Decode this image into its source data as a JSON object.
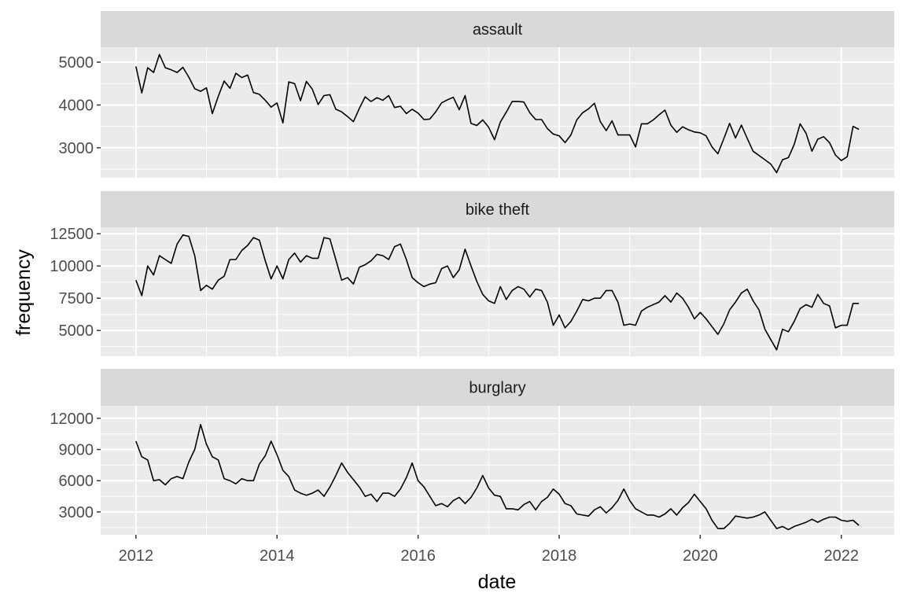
{
  "chart_data": {
    "type": "line",
    "xlabel": "date",
    "ylabel": "frequency",
    "xlim": [
      2011.5,
      2022.75
    ],
    "x_ticks": [
      2012,
      2014,
      2016,
      2018,
      2020,
      2022
    ],
    "x_tick_labels": [
      "2012",
      "2014",
      "2016",
      "2018",
      "2020",
      "2022"
    ],
    "grid": true,
    "x_start": 2012.0,
    "x_step_months": 1,
    "panels": [
      {
        "title": "assault",
        "ylim": [
          2300,
          5350
        ],
        "y_ticks": [
          3000,
          4000,
          5000
        ],
        "y_tick_labels": [
          "3000",
          "4000",
          "5000"
        ],
        "values": [
          4900,
          4280,
          4870,
          4760,
          5180,
          4870,
          4820,
          4760,
          4880,
          4650,
          4380,
          4320,
          4400,
          3800,
          4200,
          4560,
          4390,
          4740,
          4640,
          4700,
          4290,
          4250,
          4110,
          3950,
          4050,
          3580,
          4540,
          4500,
          4100,
          4550,
          4370,
          4010,
          4220,
          4240,
          3900,
          3840,
          3730,
          3610,
          3920,
          4190,
          4080,
          4170,
          4110,
          4220,
          3940,
          3970,
          3800,
          3900,
          3810,
          3660,
          3670,
          3840,
          4050,
          4120,
          4180,
          3890,
          4220,
          3570,
          3520,
          3650,
          3480,
          3190,
          3600,
          3830,
          4080,
          4080,
          4070,
          3820,
          3660,
          3660,
          3450,
          3320,
          3280,
          3120,
          3300,
          3650,
          3820,
          3910,
          4040,
          3610,
          3400,
          3630,
          3300,
          3300,
          3300,
          3020,
          3560,
          3560,
          3650,
          3770,
          3880,
          3530,
          3360,
          3490,
          3420,
          3370,
          3350,
          3280,
          3020,
          2860,
          3210,
          3570,
          3230,
          3530,
          3220,
          2920,
          2820,
          2720,
          2620,
          2420,
          2720,
          2770,
          3080,
          3560,
          3340,
          2920,
          3200,
          3260,
          3120,
          2830,
          2700,
          2790,
          3500,
          3430
        ]
      },
      {
        "title": "bike theft",
        "ylim": [
          3000,
          13000
        ],
        "y_ticks": [
          5000,
          7500,
          10000,
          12500
        ],
        "y_tick_labels": [
          "5000",
          "7500",
          "10000",
          "12500"
        ],
        "values": [
          8900,
          7700,
          10000,
          9300,
          10800,
          10500,
          10200,
          11700,
          12400,
          12300,
          10800,
          8100,
          8500,
          8200,
          8900,
          9200,
          10500,
          10500,
          11200,
          11600,
          12200,
          12000,
          10400,
          9000,
          10000,
          9000,
          10500,
          11000,
          10300,
          10800,
          10600,
          10600,
          12200,
          12100,
          10500,
          8900,
          9100,
          8600,
          9900,
          10100,
          10400,
          10900,
          10800,
          10500,
          11500,
          11700,
          10500,
          9100,
          8700,
          8400,
          8600,
          8700,
          9800,
          10000,
          9100,
          9700,
          11300,
          10000,
          8800,
          7800,
          7300,
          7100,
          8400,
          7400,
          8100,
          8400,
          8200,
          7600,
          8200,
          8100,
          7200,
          5400,
          6200,
          5200,
          5700,
          6500,
          7400,
          7300,
          7500,
          7500,
          8100,
          8100,
          7200,
          5400,
          5500,
          5400,
          6500,
          6800,
          7000,
          7200,
          7700,
          7200,
          7900,
          7500,
          6800,
          5900,
          6400,
          5900,
          5300,
          4700,
          5500,
          6600,
          7200,
          7900,
          8200,
          7300,
          6600,
          5100,
          4300,
          3500,
          5100,
          4900,
          5700,
          6700,
          7000,
          6800,
          7800,
          7100,
          6900,
          5200,
          5400,
          5400,
          7100,
          7100
        ]
      },
      {
        "title": "burglary",
        "ylim": [
          800,
          13200
        ],
        "y_ticks": [
          3000,
          6000,
          9000,
          12000
        ],
        "y_tick_labels": [
          "3000",
          "6000",
          "9000",
          "12000"
        ],
        "values": [
          9800,
          8300,
          8000,
          6000,
          6100,
          5600,
          6200,
          6400,
          6200,
          7800,
          9000,
          11400,
          9500,
          8300,
          8000,
          6200,
          6000,
          5700,
          6200,
          6000,
          6000,
          7600,
          8400,
          9800,
          8500,
          7000,
          6400,
          5100,
          4800,
          4600,
          4800,
          5100,
          4500,
          5400,
          6500,
          7700,
          6800,
          6100,
          5400,
          4500,
          4700,
          4000,
          4800,
          4800,
          4500,
          5200,
          6300,
          7700,
          6000,
          5400,
          4500,
          3600,
          3800,
          3500,
          4100,
          4400,
          3800,
          4400,
          5300,
          6500,
          5300,
          4600,
          4500,
          3300,
          3300,
          3200,
          3700,
          4000,
          3200,
          4000,
          4400,
          5200,
          4700,
          3800,
          3600,
          2800,
          2700,
          2600,
          3200,
          3500,
          2900,
          3400,
          4100,
          5200,
          4100,
          3300,
          3000,
          2700,
          2700,
          2500,
          2800,
          3300,
          2700,
          3400,
          3900,
          4700,
          4000,
          3300,
          2200,
          1400,
          1400,
          1900,
          2600,
          2500,
          2400,
          2500,
          2700,
          3000,
          2200,
          1400,
          1600,
          1300,
          1600,
          1800,
          2000,
          2300,
          2000,
          2300,
          2500,
          2500,
          2200,
          2100,
          2200,
          1700
        ]
      }
    ]
  }
}
